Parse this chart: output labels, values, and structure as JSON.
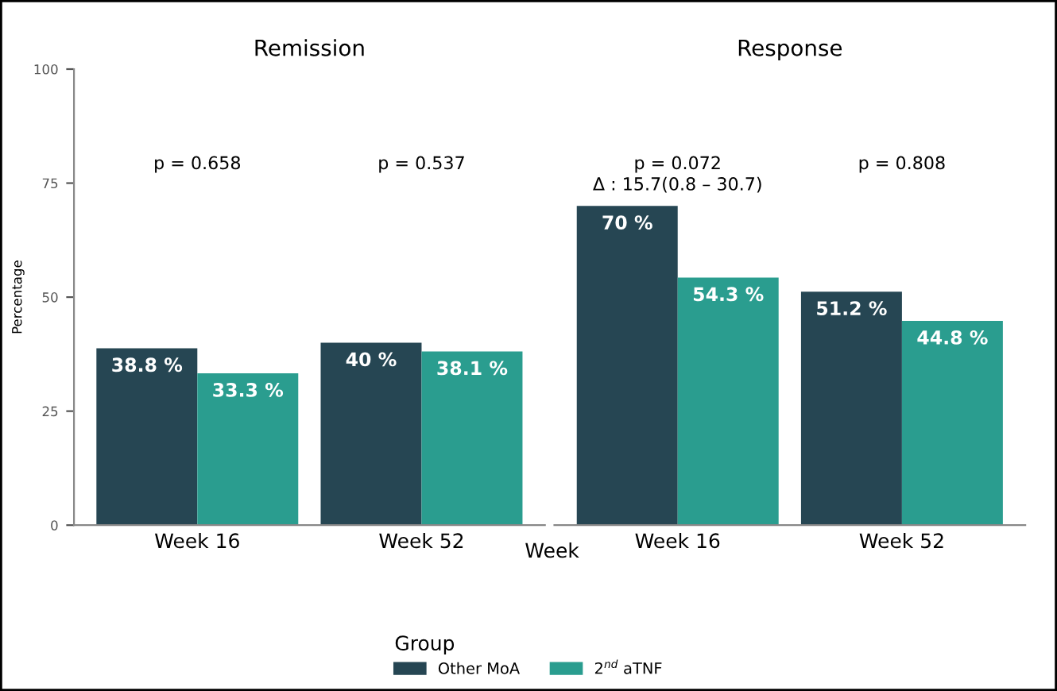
{
  "chart_data": [
    {
      "type": "bar",
      "title": "Remission",
      "ylabel": "Percentage",
      "categories": [
        "Week 16",
        "Week 52"
      ],
      "ylim": [
        0,
        100
      ],
      "yticks": [
        0,
        25,
        50,
        75,
        100
      ],
      "grid": false,
      "legend": false,
      "series": [
        {
          "color": "#264653",
          "values": [
            38.8,
            40
          ],
          "value_labels": [
            "38.8 %",
            "40 %"
          ]
        },
        {
          "color": "#2a9d8f",
          "values": [
            33.3,
            38.1
          ],
          "value_labels": [
            "33.3 %",
            "38.1 %"
          ]
        }
      ],
      "annotations": [
        "p = 0.658",
        "p = 0.537"
      ]
    },
    {
      "type": "bar",
      "title": "Response",
      "xlabel": "Week",
      "categories": [
        "Week 16",
        "Week 52"
      ],
      "ylim": [
        0,
        100
      ],
      "yticks": [
        0,
        25,
        50,
        75,
        100
      ],
      "tick_labels": "x",
      "grid": false,
      "legend": "bottom",
      "legend_title": "Group",
      "series": [
        {
          "name": "Other MoA",
          "color": "#264653",
          "values": [
            70,
            51.2
          ],
          "value_labels": [
            "70 %",
            "51.2 %"
          ]
        },
        {
          "name": "2$^{nd}$ aTNF",
          "color": "#2a9d8f",
          "values": [
            54.3,
            44.8
          ],
          "value_labels": [
            "54.3 %",
            "44.8 %"
          ]
        }
      ],
      "annotations": [
        "p = 0.072\nΔ : 15.7(0.8 – 30.7)",
        "p = 0.808"
      ]
    }
  ]
}
